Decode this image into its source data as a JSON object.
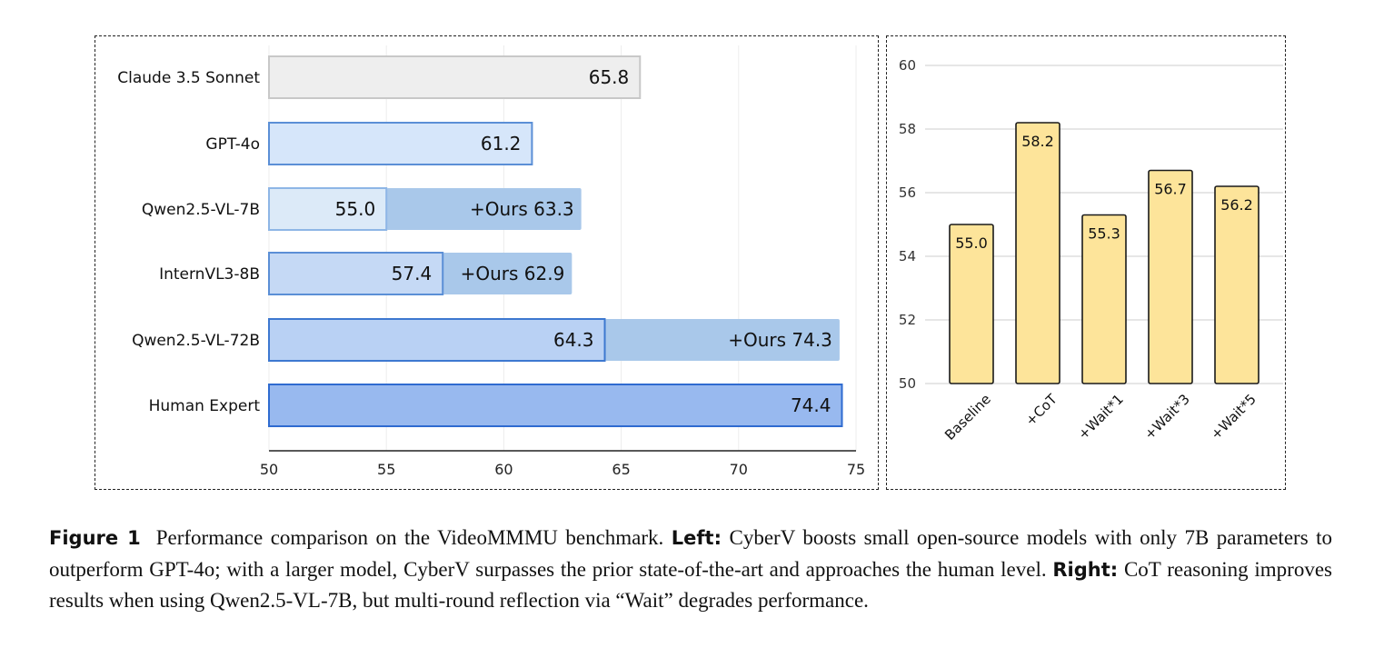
{
  "chart_data": [
    {
      "type": "bar",
      "orientation": "horizontal",
      "categories": [
        "Claude 3.5 Sonnet",
        "GPT-4o",
        "Qwen2.5-VL-7B",
        "InternVL3-8B",
        "Qwen2.5-VL-72B",
        "Human Expert"
      ],
      "series": [
        {
          "values": [
            65.8,
            61.2,
            55.0,
            57.4,
            64.3,
            74.4
          ]
        },
        {
          "values": [
            null,
            null,
            63.3,
            62.9,
            74.3,
            null
          ]
        }
      ],
      "value_labels": [
        "65.8",
        "61.2",
        "55.0",
        "57.4",
        "64.3",
        "74.4"
      ],
      "ours_labels": [
        "",
        "",
        "+Ours 63.3",
        "+Ours 62.9",
        "+Ours 74.3",
        ""
      ],
      "xlim": [
        50,
        75
      ],
      "xticks": [
        "50",
        "55",
        "60",
        "65",
        "70",
        "75"
      ],
      "colors": {
        "base": [
          "#eeeeee",
          "#d6e6fa",
          "#dceaf8",
          "#c5d9f5",
          "#b9d1f4",
          "#98b9ef"
        ],
        "base_border": [
          "#c8c8c8",
          "#5b8fd6",
          "#8eb6e6",
          "#5b8fd6",
          "#3d78d0",
          "#2f6bd0"
        ],
        "ours": "#a9c8ea"
      },
      "grid": true
    },
    {
      "type": "bar",
      "categories": [
        "Baseline",
        "+CoT",
        "+Wait*1",
        "+Wait*3",
        "+Wait*5"
      ],
      "values": [
        55.0,
        58.2,
        55.3,
        56.7,
        56.2
      ],
      "value_labels": [
        "55.0",
        "58.2",
        "55.3",
        "56.7",
        "56.2"
      ],
      "ylim": [
        50,
        60
      ],
      "yticks": [
        "50",
        "52",
        "54",
        "56",
        "58",
        "60"
      ],
      "colors": {
        "bar": "#fde49a",
        "border": "#1a1a1a"
      },
      "grid": true
    }
  ],
  "caption": {
    "figure_label": "Figure 1",
    "intro": "Performance comparison on the VideoMMMU benchmark.",
    "left_label": "Left:",
    "left_text": "CyberV boosts small open-source models with only 7B parameters to outperform GPT-4o; with a larger model, CyberV surpasses the prior state-of-the-art and approaches the human level.",
    "right_label": "Right:",
    "right_text": "CoT reasoning improves results when using Qwen2.5-VL-7B, but multi-round reflection via “Wait” degrades performance."
  }
}
